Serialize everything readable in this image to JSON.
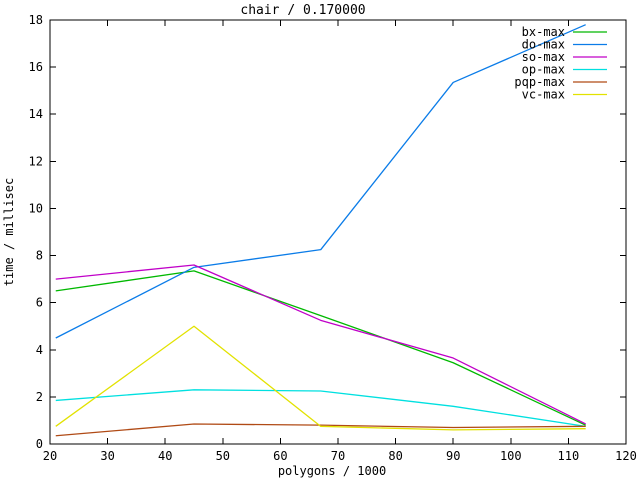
{
  "title": "chair / 0.170000",
  "chart_data": {
    "type": "line",
    "title": "chair / 0.170000",
    "xlabel": "polygons / 1000",
    "ylabel": "time / millisec",
    "xlim": [
      20,
      120
    ],
    "ylim": [
      0,
      18
    ],
    "x_ticks": [
      20,
      30,
      40,
      50,
      60,
      70,
      80,
      90,
      100,
      110,
      120
    ],
    "y_ticks": [
      0,
      2,
      4,
      6,
      8,
      10,
      12,
      14,
      16,
      18
    ],
    "grid": false,
    "legend_position": "top-right-inside",
    "axis_color": "#000000",
    "background_color": "#ffffff",
    "x": [
      21,
      45,
      67,
      90,
      113
    ],
    "series": [
      {
        "name": "bx-max",
        "color": "#00b800",
        "values": [
          6.5,
          7.35,
          5.45,
          3.45,
          0.8
        ]
      },
      {
        "name": "do-max",
        "color": "#0b7ce8",
        "values": [
          4.5,
          7.5,
          8.25,
          15.35,
          17.8
        ]
      },
      {
        "name": "so-max",
        "color": "#c000c8",
        "values": [
          7.0,
          7.6,
          5.25,
          3.65,
          0.85
        ]
      },
      {
        "name": "op-max",
        "color": "#00e0e0",
        "values": [
          1.85,
          2.3,
          2.25,
          1.6,
          0.75
        ]
      },
      {
        "name": "pqp-max",
        "color": "#b04a15",
        "values": [
          0.35,
          0.85,
          0.8,
          0.7,
          0.75
        ]
      },
      {
        "name": "vc-max",
        "color": "#e2e200",
        "values": [
          0.75,
          5.0,
          0.75,
          0.6,
          0.65
        ]
      }
    ]
  }
}
